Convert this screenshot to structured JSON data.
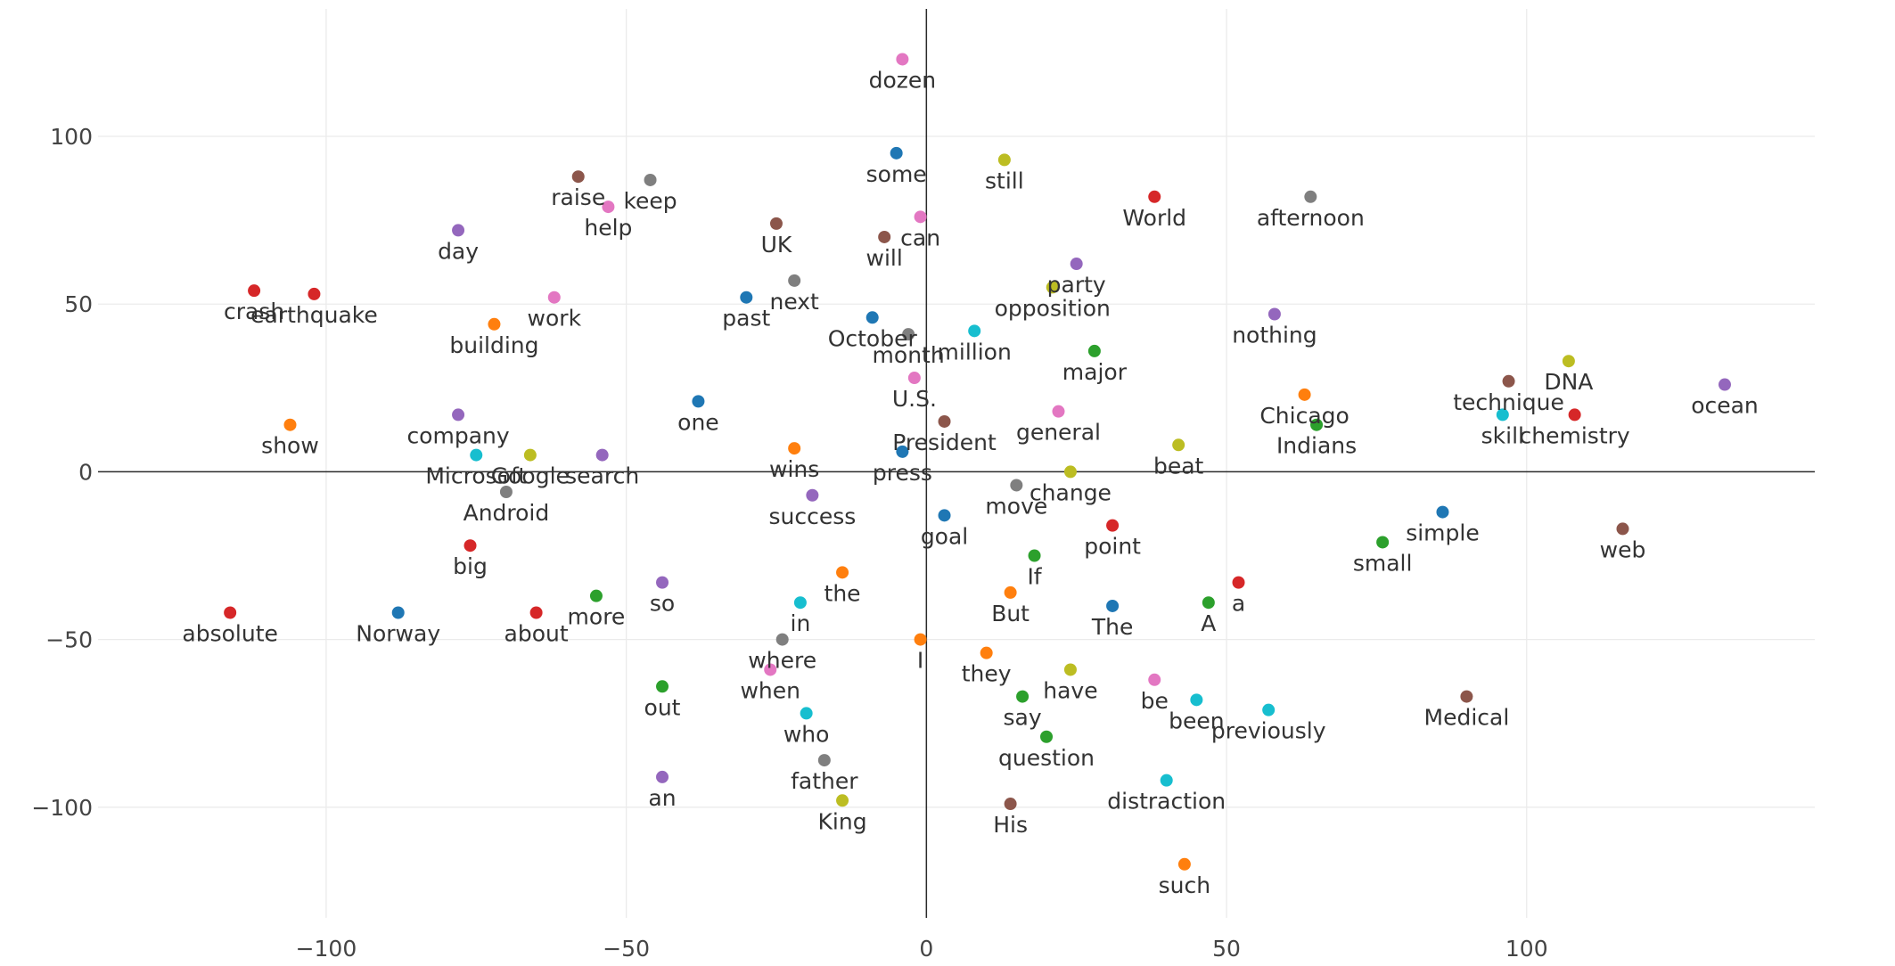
{
  "chart_data": {
    "type": "scatter",
    "title": "",
    "xlabel": "",
    "ylabel": "",
    "xlim": [
      -138,
      148
    ],
    "ylim": [
      -133,
      138
    ],
    "xticks": [
      -100,
      -50,
      0,
      50,
      100
    ],
    "yticks": [
      100,
      50,
      0,
      -50,
      -100
    ],
    "xtick_labels": [
      "−100",
      "−50",
      "0",
      "50",
      "100"
    ],
    "ytick_labels": [
      "100",
      "50",
      "0",
      "−50",
      "−100"
    ],
    "grid": true,
    "legend": "none",
    "points": [
      {
        "label": "dozen",
        "x": -4,
        "y": 123,
        "color": "#e377c2"
      },
      {
        "label": "some",
        "x": -5,
        "y": 95,
        "color": "#1f77b4"
      },
      {
        "label": "still",
        "x": 13,
        "y": 93,
        "color": "#bcbd22"
      },
      {
        "label": "raise",
        "x": -58,
        "y": 88,
        "color": "#8c564b"
      },
      {
        "label": "keep",
        "x": -46,
        "y": 87,
        "color": "#7f7f7f"
      },
      {
        "label": "World",
        "x": 38,
        "y": 82,
        "color": "#d62728"
      },
      {
        "label": "afternoon",
        "x": 64,
        "y": 82,
        "color": "#7f7f7f"
      },
      {
        "label": "help",
        "x": -53,
        "y": 79,
        "color": "#e377c2"
      },
      {
        "label": "can",
        "x": -1,
        "y": 76,
        "color": "#e377c2"
      },
      {
        "label": "UK",
        "x": -25,
        "y": 74,
        "color": "#8c564b"
      },
      {
        "label": "day",
        "x": -78,
        "y": 72,
        "color": "#9467bd"
      },
      {
        "label": "will",
        "x": -7,
        "y": 70,
        "color": "#8c564b"
      },
      {
        "label": "party",
        "x": 25,
        "y": 62,
        "color": "#9467bd"
      },
      {
        "label": "next",
        "x": -22,
        "y": 57,
        "color": "#7f7f7f"
      },
      {
        "label": "opposition",
        "x": 21,
        "y": 55,
        "color": "#bcbd22"
      },
      {
        "label": "crash",
        "x": -112,
        "y": 54,
        "color": "#d62728"
      },
      {
        "label": "earthquake",
        "x": -102,
        "y": 53,
        "color": "#d62728"
      },
      {
        "label": "past",
        "x": -30,
        "y": 52,
        "color": "#1f77b4"
      },
      {
        "label": "work",
        "x": -62,
        "y": 52,
        "color": "#e377c2"
      },
      {
        "label": "nothing",
        "x": 58,
        "y": 47,
        "color": "#9467bd"
      },
      {
        "label": "October",
        "x": -9,
        "y": 46,
        "color": "#1f77b4"
      },
      {
        "label": "building",
        "x": -72,
        "y": 44,
        "color": "#ff7f0e"
      },
      {
        "label": "million",
        "x": 8,
        "y": 42,
        "color": "#17becf"
      },
      {
        "label": "month",
        "x": -3,
        "y": 41,
        "color": "#7f7f7f"
      },
      {
        "label": "major",
        "x": 28,
        "y": 36,
        "color": "#2ca02c"
      },
      {
        "label": "DNA",
        "x": 107,
        "y": 33,
        "color": "#bcbd22"
      },
      {
        "label": "U.S.",
        "x": -2,
        "y": 28,
        "color": "#e377c2"
      },
      {
        "label": "technique",
        "x": 97,
        "y": 27,
        "color": "#8c564b"
      },
      {
        "label": "ocean",
        "x": 133,
        "y": 26,
        "color": "#9467bd"
      },
      {
        "label": "Chicago",
        "x": 63,
        "y": 23,
        "color": "#ff7f0e"
      },
      {
        "label": "one",
        "x": -38,
        "y": 21,
        "color": "#1f77b4"
      },
      {
        "label": "general",
        "x": 22,
        "y": 18,
        "color": "#e377c2"
      },
      {
        "label": "company",
        "x": -78,
        "y": 17,
        "color": "#9467bd"
      },
      {
        "label": "skill",
        "x": 96,
        "y": 17,
        "color": "#17becf"
      },
      {
        "label": "chemistry",
        "x": 108,
        "y": 17,
        "color": "#d62728"
      },
      {
        "label": "President",
        "x": 3,
        "y": 15,
        "color": "#8c564b"
      },
      {
        "label": "show",
        "x": -106,
        "y": 14,
        "color": "#ff7f0e"
      },
      {
        "label": "Indians",
        "x": 65,
        "y": 14,
        "color": "#2ca02c"
      },
      {
        "label": "beat",
        "x": 42,
        "y": 8,
        "color": "#bcbd22"
      },
      {
        "label": "wins",
        "x": -22,
        "y": 7,
        "color": "#ff7f0e"
      },
      {
        "label": "press",
        "x": -4,
        "y": 6,
        "color": "#1f77b4"
      },
      {
        "label": "search",
        "x": -54,
        "y": 5,
        "color": "#9467bd"
      },
      {
        "label": "Google",
        "x": -66,
        "y": 5,
        "color": "#bcbd22"
      },
      {
        "label": "Microsoft",
        "x": -75,
        "y": 5,
        "color": "#17becf"
      },
      {
        "label": "change",
        "x": 24,
        "y": 0,
        "color": "#bcbd22"
      },
      {
        "label": "move",
        "x": 15,
        "y": -4,
        "color": "#7f7f7f"
      },
      {
        "label": "Android",
        "x": -70,
        "y": -6,
        "color": "#7f7f7f"
      },
      {
        "label": "success",
        "x": -19,
        "y": -7,
        "color": "#9467bd"
      },
      {
        "label": "goal",
        "x": 3,
        "y": -13,
        "color": "#1f77b4"
      },
      {
        "label": "simple",
        "x": 86,
        "y": -12,
        "color": "#1f77b4"
      },
      {
        "label": "point",
        "x": 31,
        "y": -16,
        "color": "#d62728"
      },
      {
        "label": "web",
        "x": 116,
        "y": -17,
        "color": "#8c564b"
      },
      {
        "label": "big",
        "x": -76,
        "y": -22,
        "color": "#d62728"
      },
      {
        "label": "small",
        "x": 76,
        "y": -21,
        "color": "#2ca02c"
      },
      {
        "label": "If",
        "x": 18,
        "y": -25,
        "color": "#2ca02c"
      },
      {
        "label": "the",
        "x": -14,
        "y": -30,
        "color": "#ff7f0e"
      },
      {
        "label": "so",
        "x": -44,
        "y": -33,
        "color": "#9467bd"
      },
      {
        "label": "a",
        "x": 52,
        "y": -33,
        "color": "#d62728"
      },
      {
        "label": "But",
        "x": 14,
        "y": -36,
        "color": "#ff7f0e"
      },
      {
        "label": "more",
        "x": -55,
        "y": -37,
        "color": "#2ca02c"
      },
      {
        "label": "in",
        "x": -21,
        "y": -39,
        "color": "#17becf"
      },
      {
        "label": "A",
        "x": 47,
        "y": -39,
        "color": "#2ca02c"
      },
      {
        "label": "The",
        "x": 31,
        "y": -40,
        "color": "#1f77b4"
      },
      {
        "label": "absolute",
        "x": -116,
        "y": -42,
        "color": "#d62728"
      },
      {
        "label": "Norway",
        "x": -88,
        "y": -42,
        "color": "#1f77b4"
      },
      {
        "label": "about",
        "x": -65,
        "y": -42,
        "color": "#d62728"
      },
      {
        "label": "where",
        "x": -24,
        "y": -50,
        "color": "#7f7f7f"
      },
      {
        "label": "I",
        "x": -1,
        "y": -50,
        "color": "#ff7f0e"
      },
      {
        "label": "they",
        "x": 10,
        "y": -54,
        "color": "#ff7f0e"
      },
      {
        "label": "have",
        "x": 24,
        "y": -59,
        "color": "#bcbd22"
      },
      {
        "label": "when",
        "x": -26,
        "y": -59,
        "color": "#e377c2"
      },
      {
        "label": "be",
        "x": 38,
        "y": -62,
        "color": "#e377c2"
      },
      {
        "label": "out",
        "x": -44,
        "y": -64,
        "color": "#2ca02c"
      },
      {
        "label": "Medical",
        "x": 90,
        "y": -67,
        "color": "#8c564b"
      },
      {
        "label": "say",
        "x": 16,
        "y": -67,
        "color": "#2ca02c"
      },
      {
        "label": "been",
        "x": 45,
        "y": -68,
        "color": "#17becf"
      },
      {
        "label": "previously",
        "x": 57,
        "y": -71,
        "color": "#17becf"
      },
      {
        "label": "who",
        "x": -20,
        "y": -72,
        "color": "#17becf"
      },
      {
        "label": "question",
        "x": 20,
        "y": -79,
        "color": "#2ca02c"
      },
      {
        "label": "father",
        "x": -17,
        "y": -86,
        "color": "#7f7f7f"
      },
      {
        "label": "an",
        "x": -44,
        "y": -91,
        "color": "#9467bd"
      },
      {
        "label": "distraction",
        "x": 40,
        "y": -92,
        "color": "#17becf"
      },
      {
        "label": "King",
        "x": -14,
        "y": -98,
        "color": "#bcbd22"
      },
      {
        "label": "His",
        "x": 14,
        "y": -99,
        "color": "#8c564b"
      },
      {
        "label": "such",
        "x": 43,
        "y": -117,
        "color": "#ff7f0e"
      }
    ]
  }
}
